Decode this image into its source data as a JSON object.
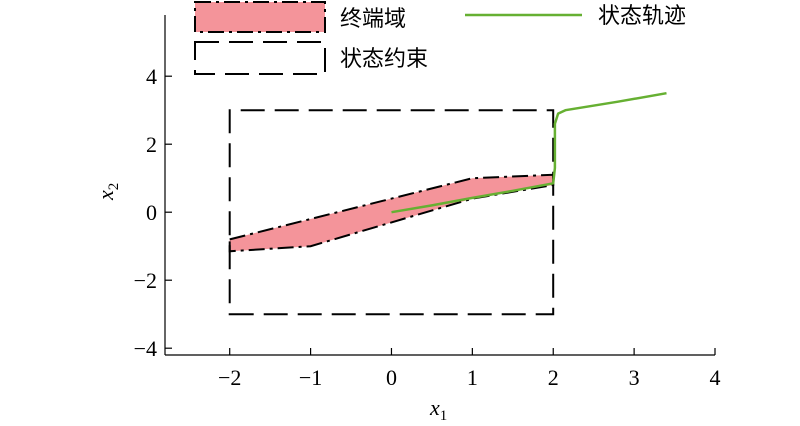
{
  "chart_data": {
    "type": "line",
    "xlabel": "x",
    "xlabel_sub": "1",
    "ylabel": "x",
    "ylabel_sub": "2",
    "xlim": [
      -2.8,
      4
    ],
    "ylim": [
      -4.2,
      5.8
    ],
    "x_ticks": [
      -2,
      -1,
      0,
      1,
      2,
      3,
      4
    ],
    "x_tick_labels": [
      "−2",
      "−1",
      "0",
      "1",
      "2",
      "3",
      "4"
    ],
    "y_ticks": [
      -4,
      -2,
      0,
      2,
      4
    ],
    "y_tick_labels": [
      "−4",
      "−2",
      "0",
      "2",
      "4"
    ],
    "grid": false,
    "legend_position": "top",
    "series": [
      {
        "name": "终端域",
        "kind": "filled-polygon",
        "color": "#f4949a",
        "edge_color": "#000000",
        "points": [
          [
            -2,
            -0.8
          ],
          [
            -1,
            -0.2
          ],
          [
            1,
            1.0
          ],
          [
            2,
            1.1
          ],
          [
            2,
            0.8
          ],
          [
            1,
            0.4
          ],
          [
            -1,
            -1.0
          ],
          [
            -2,
            -1.15
          ]
        ]
      },
      {
        "name": "状态约束",
        "kind": "dashed-rectangle",
        "color": "#000000",
        "points": [
          [
            -2,
            -3
          ],
          [
            2,
            -3
          ],
          [
            2,
            3
          ],
          [
            -2,
            3
          ]
        ]
      },
      {
        "name": "状态轨迹",
        "kind": "line",
        "color": "#66b032",
        "points": [
          [
            0,
            0
          ],
          [
            0.5,
            0.2
          ],
          [
            1,
            0.42
          ],
          [
            1.5,
            0.63
          ],
          [
            2,
            0.85
          ],
          [
            2.02,
            1.3
          ],
          [
            2.02,
            2.0
          ],
          [
            2.02,
            2.6
          ],
          [
            2.06,
            2.9
          ],
          [
            2.15,
            3.0
          ],
          [
            2.8,
            3.25
          ],
          [
            3.4,
            3.5
          ]
        ]
      }
    ]
  }
}
